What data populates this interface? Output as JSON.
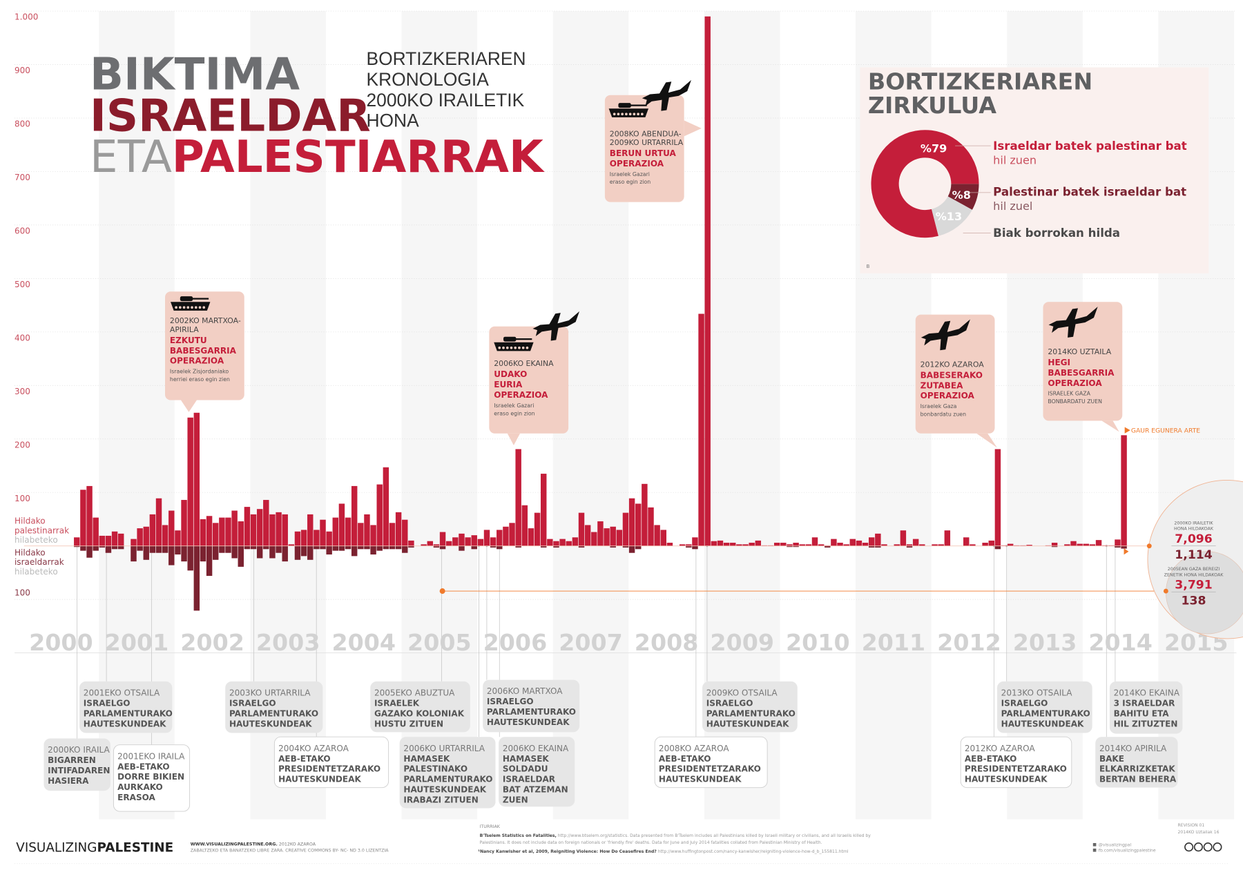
{
  "title": {
    "line1": "BIKTIMA",
    "line2": "ISRAELDAR",
    "line3a": "ETA",
    "line3b": "PALESTIARRAK"
  },
  "subtitle": [
    "BORTIZKERIAREN",
    "KRONOLOGIA",
    "2000KO IRAILETIK",
    "HONA"
  ],
  "colors": {
    "palestinian": "#c41e3a",
    "israeli": "#7b2230",
    "title_gray": "#6d6e71",
    "callout_bg": "#f2cfc4",
    "event_bg": "#e6e6e6",
    "accent_orange": "#f07a2b",
    "year_label": "#d2d2d2",
    "panel_bg": "#faf0ee"
  },
  "legend": {
    "pal": [
      "Hildako",
      "palestinarrak",
      "hilabeteko"
    ],
    "isr": [
      "Hildako",
      "israeldarrak",
      "hilabeteko"
    ]
  },
  "chart_data": {
    "type": "bar",
    "x_start": "2000-09",
    "x_end": "2014-07",
    "interval": "month",
    "ylim_up": [
      0,
      1000
    ],
    "ylim_down": [
      0,
      100
    ],
    "y_ticks_up": [
      "1.000",
      "900",
      "800",
      "700",
      "600",
      "500",
      "400",
      "300",
      "200",
      "100"
    ],
    "y_ticks_down": [
      "100"
    ],
    "year_labels": [
      "2000",
      "2001",
      "2002",
      "2003",
      "2004",
      "2005",
      "2006",
      "2007",
      "2008",
      "2009",
      "2010",
      "2011",
      "2012",
      "2013",
      "2014",
      "2015"
    ],
    "grid": true,
    "series": [
      {
        "name": "Hildako palestinarrak hilabeteko",
        "direction": "up",
        "values": [
          16,
          105,
          112,
          53,
          19,
          19,
          27,
          23,
          0,
          13,
          33,
          36,
          59,
          89,
          39,
          66,
          29,
          86,
          240,
          249,
          50,
          56,
          43,
          53,
          53,
          66,
          46,
          73,
          59,
          69,
          86,
          59,
          63,
          59,
          3,
          27,
          30,
          59,
          30,
          49,
          27,
          53,
          79,
          53,
          112,
          43,
          59,
          39,
          115,
          147,
          43,
          63,
          49,
          10,
          0,
          3,
          9,
          3,
          26,
          9,
          16,
          23,
          16,
          20,
          13,
          30,
          16,
          30,
          36,
          43,
          181,
          76,
          33,
          62,
          135,
          13,
          9,
          13,
          9,
          16,
          62,
          39,
          26,
          46,
          33,
          36,
          30,
          62,
          89,
          79,
          116,
          72,
          39,
          30,
          6,
          0,
          3,
          3,
          16,
          434,
          990,
          9,
          10,
          6,
          6,
          3,
          3,
          6,
          10,
          1,
          1,
          6,
          6,
          3,
          6,
          3,
          3,
          16,
          3,
          1,
          13,
          6,
          3,
          13,
          10,
          6,
          16,
          23,
          3,
          0,
          3,
          29,
          3,
          13,
          3,
          0,
          3,
          3,
          29,
          0,
          0,
          16,
          3,
          0,
          6,
          10,
          181,
          1,
          4,
          1,
          1,
          2,
          0,
          0,
          1,
          6,
          0,
          3,
          9,
          4,
          4,
          3,
          11,
          1,
          1,
          12,
          207
        ]
      },
      {
        "name": "Hildako israeldarrak hilabeteko",
        "direction": "down",
        "values": [
          2,
          9,
          22,
          9,
          3,
          13,
          6,
          6,
          0,
          29,
          9,
          26,
          13,
          13,
          13,
          36,
          16,
          29,
          46,
          121,
          29,
          56,
          26,
          13,
          13,
          23,
          39,
          6,
          6,
          23,
          6,
          23,
          13,
          29,
          0,
          26,
          19,
          26,
          6,
          6,
          16,
          9,
          9,
          6,
          19,
          6,
          6,
          16,
          9,
          6,
          6,
          6,
          13,
          3,
          0,
          0,
          0,
          3,
          6,
          0,
          0,
          9,
          0,
          6,
          0,
          0,
          3,
          6,
          0,
          0,
          3,
          0,
          0,
          0,
          3,
          0,
          3,
          0,
          0,
          0,
          3,
          0,
          0,
          0,
          0,
          3,
          0,
          3,
          13,
          6,
          0,
          0,
          0,
          0,
          0,
          0,
          0,
          3,
          6,
          0,
          0,
          0,
          0,
          0,
          0,
          0,
          0,
          0,
          0,
          0,
          0,
          0,
          0,
          2,
          2,
          0,
          0,
          0,
          0,
          3,
          0,
          0,
          0,
          0,
          0,
          0,
          3,
          3,
          0,
          0,
          0,
          0,
          3,
          0,
          0,
          0,
          0,
          0,
          0,
          0,
          0,
          0,
          0,
          0,
          0,
          0,
          6,
          0,
          0,
          0,
          0,
          0,
          0,
          0,
          0,
          2,
          0,
          0,
          0,
          0,
          0,
          0,
          0,
          0,
          0,
          3,
          5
        ]
      }
    ]
  },
  "today_marker": "GAUR EGUNERA ARTE",
  "callouts": [
    {
      "icons": [
        "tank"
      ],
      "date_lines": [
        "2002KO MARTXOA-",
        "APIRILA"
      ],
      "name_lines": [
        "EZKUTU",
        "BABESGARRIA",
        "OPERAZIOA"
      ],
      "desc_lines": [
        "Israelek Zisjordaniako",
        "herriei eraso egin zien"
      ]
    },
    {
      "icons": [
        "tank",
        "plane"
      ],
      "date_lines": [
        "2006KO EKAINA"
      ],
      "name_lines": [
        "UDAKO",
        "EURIA",
        "OPERAZIOA"
      ],
      "desc_lines": [
        "Israelek Gazari",
        "eraso egin zion"
      ]
    },
    {
      "icons": [
        "tank",
        "plane"
      ],
      "date_lines": [
        "2008KO ABENDUA-",
        "2009KO URTARRILA"
      ],
      "name_lines": [
        "BERUN URTUA",
        "OPERAZIOA"
      ],
      "desc_lines": [
        "Israelek Gazari",
        "eraso egin zion"
      ]
    },
    {
      "icons": [
        "plane"
      ],
      "date_lines": [
        "2012KO AZAROA"
      ],
      "name_lines": [
        "BABESERAKO",
        "ZUTABEA",
        "OPERAZIOA"
      ],
      "desc_lines": [
        "Israelek Gaza",
        "bonbardatu zuen"
      ]
    },
    {
      "icons": [
        "plane"
      ],
      "date_lines": [
        "2014KO UZTAILA"
      ],
      "name_lines": [
        "HEGI",
        "BABESGARRIA",
        "OPERAZIOA"
      ],
      "desc_lines": [
        "ISRAELEK GAZA",
        "BONBARDATU ZUEN"
      ]
    }
  ],
  "events": [
    {
      "date": "2000KO IRAILA",
      "lines": [
        "BIGARREN",
        "INTIFADAREN",
        "HASIERA"
      ]
    },
    {
      "date": "2001EKO OTSAILA",
      "lines": [
        "ISRAELGO",
        "PARLAMENTURAKO",
        "HAUTESKUNDEAK"
      ]
    },
    {
      "date": "2001EKO IRAILA",
      "lines": [
        "AEB-ETAKO",
        "DORRE BIKIEN",
        "AURKAKO",
        "ERASOA"
      ]
    },
    {
      "date": "2003KO URTARRILA",
      "lines": [
        "ISRAELGO",
        "PARLAMENTURAKO",
        "HAUTESKUNDEAK"
      ]
    },
    {
      "date": "2004KO AZAROA",
      "lines": [
        "AEB-ETAKO",
        "PRESIDENTETZARAKO",
        "HAUTESKUNDEAK"
      ]
    },
    {
      "date": "2005EKO ABUZTUA",
      "lines": [
        "ISRAELEK",
        "GAZAKO KOLONIAK",
        "HUSTU ZITUEN"
      ]
    },
    {
      "date": "2006KO URTARRILA",
      "lines": [
        "HAMASEK",
        "PALESTINAKO",
        "PARLAMENTURAKO",
        "HAUTESKUNDEAK",
        "IRABAZI ZITUEN"
      ]
    },
    {
      "date": "2006KO MARTXOA",
      "lines": [
        "ISRAELGO",
        "PARLAMENTURAKO",
        "HAUTESKUNDEAK"
      ]
    },
    {
      "date": "2006KO EKAINA",
      "lines": [
        "HAMASEK",
        "SOLDADU",
        "ISRAELDAR",
        "BAT ATZEMAN",
        "ZUEN"
      ]
    },
    {
      "date": "2008KO AZAROA",
      "lines": [
        "AEB-ETAKO",
        "PRESIDENTETZARAKO",
        "HAUTESKUNDEAK"
      ]
    },
    {
      "date": "2009KO OTSAILA",
      "lines": [
        "ISRAELGO",
        "PARLAMENTURAKO",
        "HAUTESKUNDEAK"
      ]
    },
    {
      "date": "2012KO AZAROA",
      "lines": [
        "AEB-ETAKO",
        "PRESIDENTETZARAKO",
        "HAUTESKUNDEAK"
      ]
    },
    {
      "date": "2013KO OTSAILA",
      "lines": [
        "ISRAELGO",
        "PARLAMENTURAKO",
        "HAUTESKUNDEAK"
      ]
    },
    {
      "date": "2014KO EKAINA",
      "lines": [
        "3 ISRAELDAR",
        "BAHITU ETA",
        "HIL ZITUZTEN"
      ]
    },
    {
      "date": "2014KO APIRILA",
      "lines": [
        "BAKE",
        "ELKARRIZKETAK",
        "BERTAN BEHERA"
      ]
    }
  ],
  "pie": {
    "title": [
      "BORTIZKERIAREN",
      "ZIRKULUA"
    ],
    "slices": [
      {
        "value": 8,
        "label": "%8",
        "legend_bold": "Palestinar batek israeldar bat",
        "legend_sub": "hil zuel",
        "color": "#7b2230"
      },
      {
        "value": 13,
        "label": "%13",
        "legend_bold": "Biak borrokan hilda",
        "legend_sub": "",
        "color": "#d9d9d9"
      },
      {
        "value": 79,
        "label": "%79",
        "legend_bold": "Israeldar batek palestinar bat",
        "legend_sub": "hil zuen",
        "color": "#c41e3a"
      }
    ],
    "note": "B"
  },
  "totals": {
    "since_label": [
      "2000KO IRAILETIK",
      "HONA HILDAKOAK"
    ],
    "since_pal": "7,096",
    "since_isr": "1,114",
    "gaza_label": [
      "2005EAN GAZA BEREIZI",
      "ZENETIK HONA HILDAKOAK"
    ],
    "gaza_pal": "3,791",
    "gaza_isr": "138"
  },
  "footer": {
    "brand_light": "VISUALIZING",
    "brand_bold": "PALESTINE",
    "site": "WWW.VISUALIZINGPALESTINE.ORG.",
    "site_date": " 2012KO AZAROA",
    "license": "ZABALTZEKO ETA BANATZEKO LIBRE ZARA. CREATIVE COMMONS BY- NC- ND 3.0 LIZENTZIA",
    "sources_title": "ITURRIAK",
    "source1_bold": "B'Tselem Statistics on Fatalities,",
    "source1": " http://www.btselem.org/statistics. Data presented from B'Tselem includes all Palestinians killed by Israeli military or civilians, and all Israelis killed by",
    "source1b": "Palestinians. It does not include data on foreign nationals or 'friendly fire' deaths. Data for June and July 2014 fatalities collated from Palestinian Ministry of Health.",
    "source2_bold": "¹Nancy Kanwisher et al, 2009, Reigniting Violence: How Do Ceasefires End?",
    "source2": " http://www.huffingtonpost.com/nancy-kanwisher/reigniting-violence-how-d_b_155811.html",
    "twitter": "@visualizingpal",
    "facebook": "fb.com/visualizingpalestine",
    "revision": "REVISION 01",
    "revision_date": "2014KO Uztailak 16",
    "cc": "cc by nc nd"
  }
}
